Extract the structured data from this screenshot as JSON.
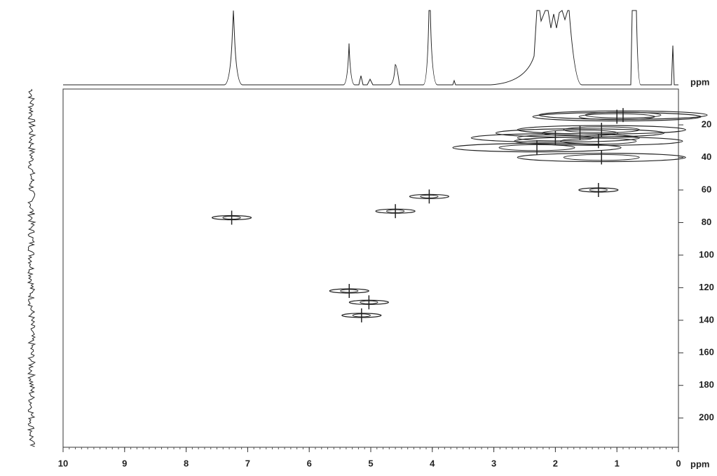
{
  "chart_data": {
    "type": "scatter",
    "x_label": "ppm",
    "y_label": "ppm",
    "xlim": [
      10,
      0
    ],
    "xticks": [
      10,
      9,
      8,
      7,
      6,
      5,
      4,
      3,
      2,
      1,
      0
    ],
    "ylim": [
      -2,
      218
    ],
    "y_inverted": true,
    "yticks": [
      20,
      40,
      60,
      80,
      100,
      120,
      140,
      160,
      180,
      200
    ],
    "color": "#222222",
    "x": [
      7.26,
      5.35,
      4.6,
      4.05,
      5.03,
      5.15,
      1.3,
      1.25,
      1.0,
      1.6,
      2.0,
      1.25,
      1.3,
      2.3,
      0.9
    ],
    "values": [
      77,
      122,
      73,
      64,
      129,
      137,
      30,
      23,
      15,
      25,
      28,
      40,
      60,
      34,
      14
    ]
  }
}
